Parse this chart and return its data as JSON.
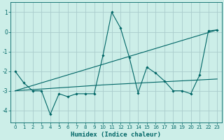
{
  "xlabel": "Humidex (Indice chaleur)",
  "ylabel": "",
  "bg_color": "#cceee8",
  "grid_color": "#aacccc",
  "line_color": "#006666",
  "xlim": [
    -0.5,
    23.5
  ],
  "ylim": [
    -4.6,
    1.5
  ],
  "xticks": [
    0,
    1,
    2,
    3,
    4,
    5,
    6,
    7,
    8,
    9,
    10,
    11,
    12,
    13,
    14,
    15,
    16,
    17,
    18,
    19,
    20,
    21,
    22,
    23
  ],
  "yticks": [
    -4,
    -3,
    -2,
    -1,
    0,
    1
  ],
  "y_values": [
    -2.0,
    -2.6,
    -3.0,
    -3.0,
    -4.2,
    -3.15,
    -3.3,
    -3.15,
    -3.15,
    -3.15,
    -1.2,
    1.0,
    0.2,
    -1.3,
    -3.1,
    -1.8,
    -2.1,
    -2.5,
    -3.0,
    -3.0,
    -3.15,
    -2.2,
    0.05,
    0.1
  ],
  "trend1_x": [
    0,
    23
  ],
  "trend1_y": [
    -3.0,
    0.1
  ],
  "trend2_x": [
    0,
    10,
    23
  ],
  "trend2_y": [
    -3.0,
    -2.7,
    -2.4
  ]
}
